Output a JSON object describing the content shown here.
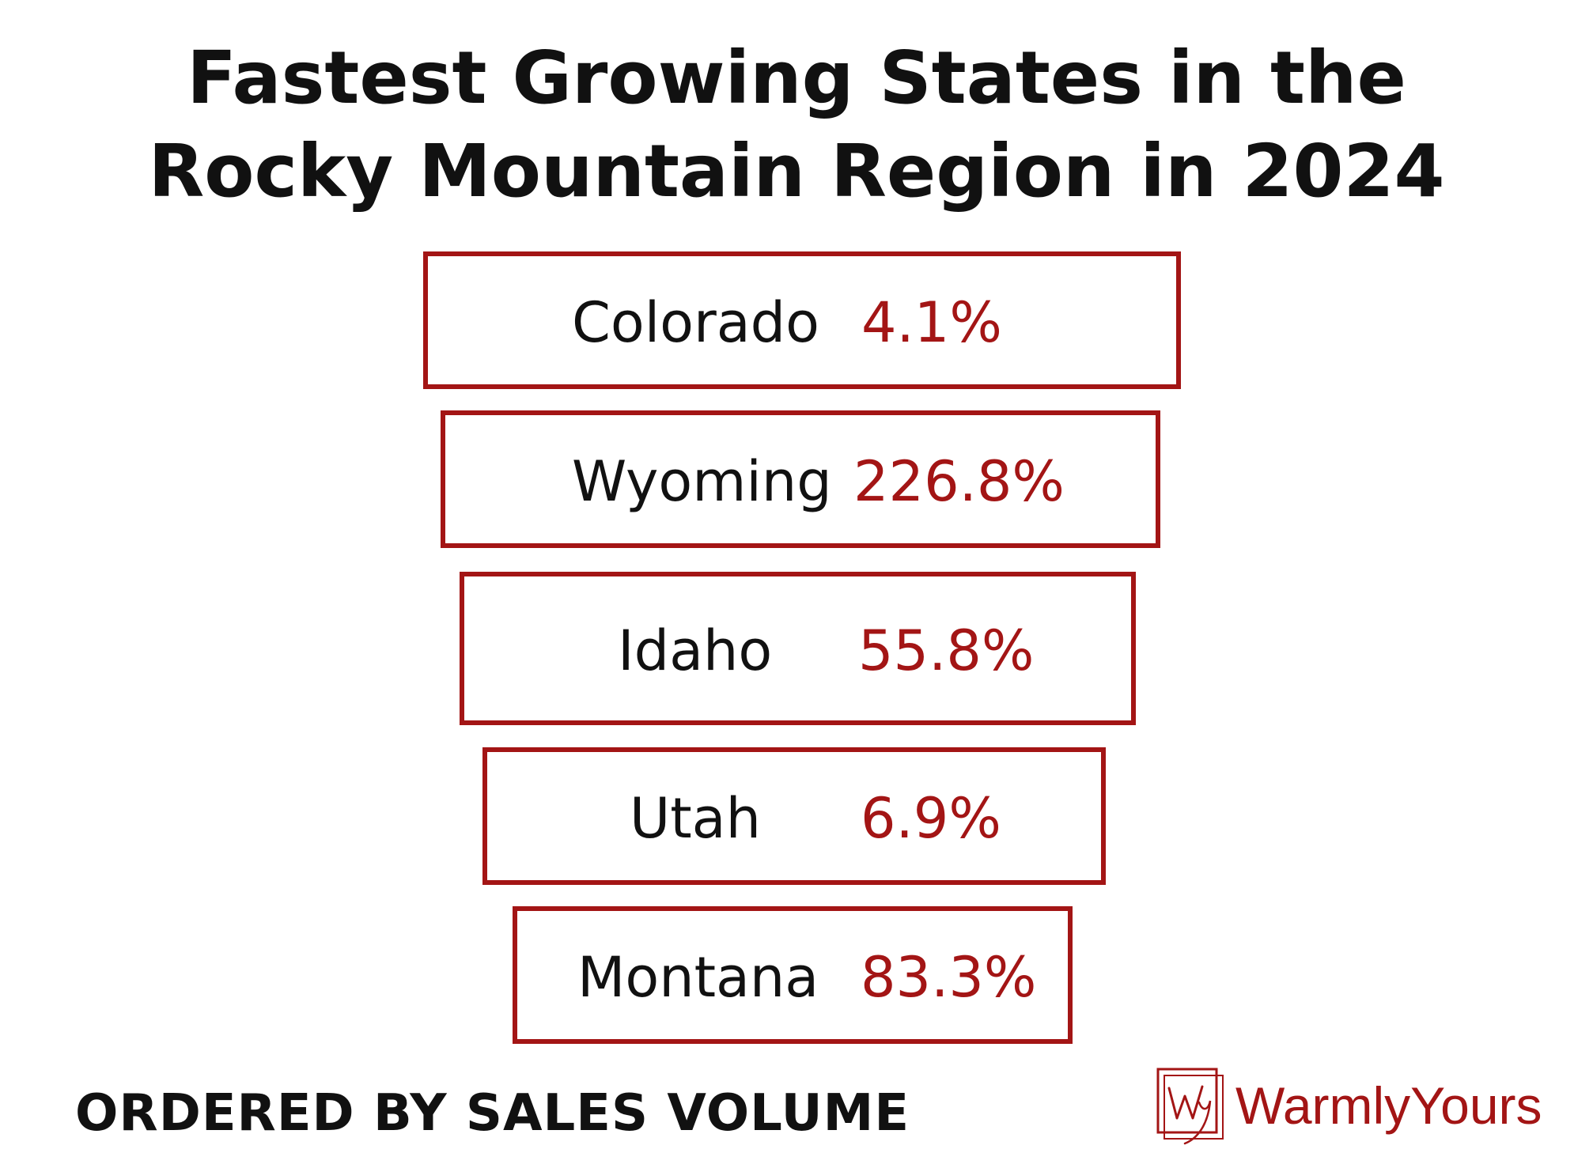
{
  "chart_data": {
    "type": "table",
    "title": "Fastest Growing States in the Rocky Mountain Region in 2024",
    "title_lines": [
      "Fastest Growing States in the",
      "Rocky Mountain Region in 2024"
    ],
    "categories": [
      "Colorado",
      "Wyoming",
      "Idaho",
      "Utah",
      "Montana"
    ],
    "value_labels": [
      "4.1%",
      "226.8%",
      "55.8%",
      "6.9%",
      "83.3%"
    ],
    "values": [
      4.1,
      226.8,
      55.8,
      6.9,
      83.3
    ],
    "unit": "%",
    "note": "ORDERED BY SALES VOLUME",
    "colors": {
      "accent": "#a31515",
      "text": "#111111",
      "background": "#ffffff"
    }
  },
  "brand": {
    "name": "WarmlyYours",
    "icon": "wy-monogram-icon"
  }
}
